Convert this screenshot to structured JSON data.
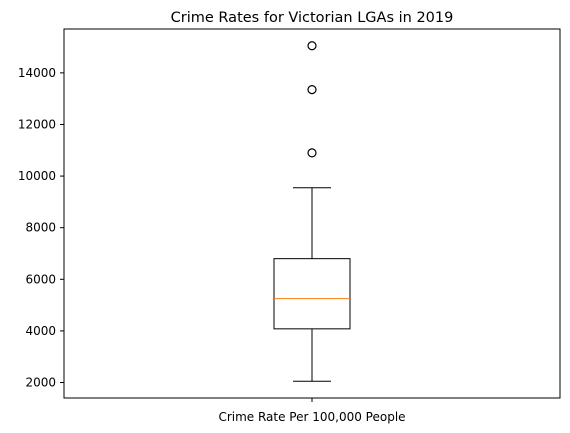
{
  "chart_data": {
    "type": "box",
    "title": "Crime Rates for Victorian LGAs in 2019",
    "categories": [
      "Crime Rate Per 100,000 People"
    ],
    "box": {
      "whisker_low": 2050,
      "q1": 4080,
      "median": 5250,
      "q3": 6800,
      "whisker_high": 9550
    },
    "outliers": [
      10900,
      13350,
      15050
    ],
    "yticks": [
      2000,
      4000,
      6000,
      8000,
      10000,
      12000,
      14000
    ],
    "ytick_labels": [
      "2000",
      "4000",
      "6000",
      "8000",
      "10000",
      "12000",
      "14000"
    ],
    "ylim": [
      1400,
      15700
    ],
    "grid": false,
    "colors": {
      "box": "#000000",
      "median": "#ff7f0e",
      "outlier_edge": "#000000"
    }
  }
}
